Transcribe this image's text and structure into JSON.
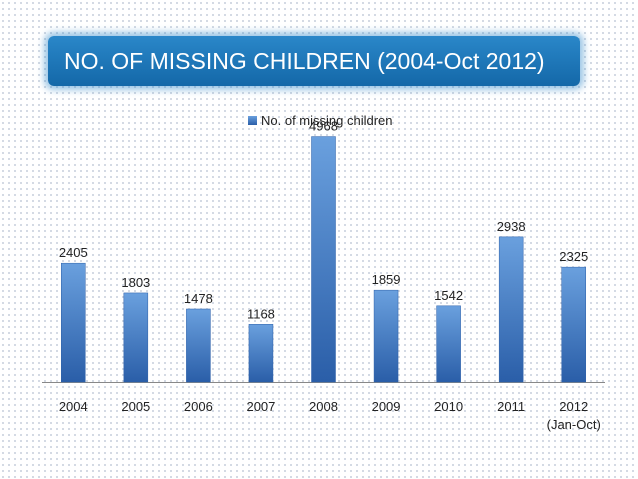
{
  "chart_data": {
    "type": "bar",
    "title": "NO. OF MISSING CHILDREN (2004-Oct 2012)",
    "categories": [
      "2004",
      "2005",
      "2006",
      "2007",
      "2008",
      "2009",
      "2010",
      "2011",
      "2012"
    ],
    "category_sublabels": [
      "",
      "",
      "",
      "",
      "",
      "",
      "",
      "",
      "(Jan-Oct)"
    ],
    "series": [
      {
        "name": "No. of missing children",
        "values": [
          2405,
          1803,
          1478,
          1168,
          4968,
          1859,
          1542,
          2938,
          2325
        ]
      }
    ],
    "legend_position": "top",
    "grid": false,
    "ylim": [
      0,
      5000
    ],
    "colors": {
      "bar_top": "#6aa0de",
      "bar_bottom": "#2a5ea8",
      "title_bg": "#1a73b8"
    }
  }
}
